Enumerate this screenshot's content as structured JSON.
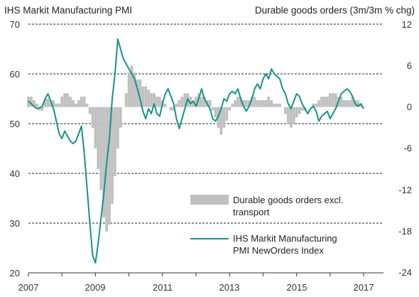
{
  "chart_data": {
    "type": "bar+line",
    "left_axis_title": "IHS  Markit Manufacturing PMI",
    "right_axis_title": "Durable goods orders (3m/3m % chg)",
    "x_ticks": [
      "2007",
      "2009",
      "2011",
      "2013",
      "2015",
      "2017"
    ],
    "left_ticks": [
      "70",
      "60",
      "50",
      "40",
      "30",
      "20"
    ],
    "right_ticks": [
      "12",
      "6",
      "0",
      "-6",
      "-12",
      "-18",
      "-24"
    ],
    "left_ylim": [
      20,
      70
    ],
    "right_ylim": [
      -24,
      12
    ],
    "x_range": [
      "2007-01",
      "2017-09"
    ],
    "grid": "dashed horizontal at left-axis ticks",
    "legend_position": "bottom-right",
    "colors": {
      "bars": "#c0c0c0",
      "line": "#16948a",
      "grid": "#222222",
      "axis": "#333333"
    },
    "series": [
      {
        "name": "Durable goods orders excl. transport",
        "kind": "bar",
        "axis": "right",
        "start": "2007-01",
        "values": [
          1.5,
          1.5,
          1.0,
          0.5,
          -0.5,
          -0.5,
          1.2,
          1.2,
          1.0,
          1.0,
          0.5,
          0.5,
          1.5,
          2.0,
          2.0,
          1.5,
          1.0,
          0.5,
          1.0,
          1.5,
          1.5,
          0.5,
          -1.0,
          -3.0,
          -6.0,
          -9.0,
          -12.0,
          -16.0,
          -18.0,
          -17.0,
          -14.0,
          -10.0,
          -6.0,
          -3.0,
          0.0,
          2.0,
          5.0,
          6.0,
          5.0,
          4.0,
          4.0,
          3.0,
          3.0,
          2.5,
          2.0,
          2.0,
          1.5,
          1.5,
          1.0,
          0.5,
          0.0,
          -0.5,
          -0.5,
          0.5,
          1.0,
          1.5,
          2.0,
          2.0,
          1.5,
          1.0,
          1.5,
          2.0,
          1.5,
          1.5,
          1.0,
          1.0,
          -0.5,
          -1.5,
          -3.0,
          -4.0,
          -3.0,
          -2.0,
          -0.5,
          0.5,
          1.0,
          1.5,
          1.5,
          1.0,
          1.0,
          1.0,
          1.5,
          1.5,
          1.0,
          1.0,
          1.0,
          1.0,
          1.5,
          1.0,
          0.5,
          0.5,
          0.5,
          0.0,
          -1.0,
          -2.5,
          -3.0,
          -2.5,
          -1.5,
          -1.0,
          -0.5,
          -0.5,
          0.0,
          0.0,
          0.5,
          0.5,
          1.0,
          1.5,
          1.5,
          1.5,
          2.0,
          2.0,
          2.0,
          1.5,
          1.5,
          1.0,
          1.0,
          1.0,
          1.5,
          1.0,
          1.0,
          0.5,
          0.0
        ]
      },
      {
        "name": "IHS Markit Manufacturing PMI NewOrders Index",
        "kind": "line",
        "axis": "left",
        "start": "2007-01",
        "values": [
          54.5,
          54.0,
          53.5,
          53.0,
          53.2,
          53.5,
          55.0,
          56.0,
          54.5,
          53.0,
          50.5,
          48.0,
          47.0,
          48.5,
          47.5,
          46.5,
          46.0,
          46.5,
          48.0,
          49.5,
          44.0,
          37.0,
          30.0,
          23.5,
          22.0,
          26.0,
          31.0,
          36.0,
          42.0,
          47.0,
          55.0,
          60.0,
          67.0,
          65.0,
          63.0,
          62.0,
          61.0,
          60.0,
          59.0,
          57.0,
          55.0,
          52.5,
          51.0,
          53.0,
          52.0,
          54.0,
          52.0,
          51.5,
          54.0,
          56.0,
          57.0,
          55.5,
          54.0,
          51.0,
          49.0,
          51.0,
          53.0,
          55.0,
          54.0,
          54.5,
          53.5,
          55.0,
          57.0,
          55.0,
          54.0,
          53.0,
          51.0,
          50.5,
          51.5,
          53.0,
          55.0,
          54.5,
          56.0,
          56.5,
          56.0,
          57.0,
          55.0,
          53.5,
          52.5,
          53.5,
          55.0,
          57.0,
          58.0,
          57.0,
          59.0,
          60.0,
          59.0,
          61.0,
          60.0,
          59.5,
          59.0,
          57.0,
          56.0,
          54.0,
          53.0,
          54.5,
          56.0,
          55.5,
          54.0,
          53.0,
          52.0,
          53.0,
          53.5,
          52.5,
          50.5,
          51.5,
          52.0,
          52.5,
          51.0,
          52.0,
          53.0,
          54.5,
          56.0,
          56.5,
          57.0,
          56.5,
          55.5,
          54.0,
          53.5,
          54.0,
          53.0
        ]
      }
    ]
  },
  "legend": {
    "bar_label_line1": "Durable goods orders excl.",
    "bar_label_line2": "transport",
    "line_label_line1": "IHS Markit Manufacturing",
    "line_label_line2": "PMI NewOrders Index"
  }
}
